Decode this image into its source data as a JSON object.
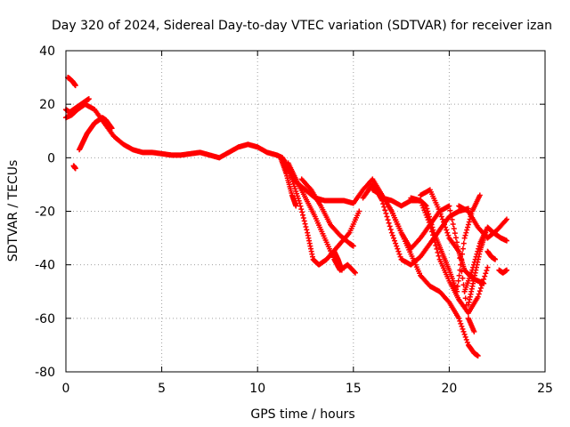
{
  "chart_data": {
    "type": "scatter",
    "title": "Day 320 of 2024, Sidereal Day-to-day VTEC variation (SDTVAR) for receiver izan",
    "xlabel": "GPS time / hours",
    "ylabel": "SDTVAR / TECUs",
    "xlim": [
      0,
      25
    ],
    "ylim": [
      -80,
      40
    ],
    "xticks": [
      0,
      5,
      10,
      15,
      20,
      25
    ],
    "yticks": [
      -80,
      -60,
      -40,
      -20,
      0,
      20,
      40
    ],
    "grid": true,
    "marker": "+",
    "color": "#ff0000",
    "series": [
      {
        "name": "trace-main",
        "x": [
          0.0,
          0.3,
          0.6,
          1.0,
          1.5,
          2.0,
          2.5,
          3.0,
          3.5,
          4.0,
          4.5,
          5.0,
          5.5,
          6.0,
          6.5,
          7.0,
          7.5,
          8.0,
          8.5,
          9.0,
          9.5,
          10.0,
          10.5,
          11.0,
          11.3,
          11.6,
          12.0,
          12.5,
          13.0,
          13.5,
          14.0,
          14.5,
          15.0
        ],
        "y": [
          15,
          16,
          18,
          20,
          18,
          13,
          8,
          5,
          3,
          2,
          2,
          1.5,
          1,
          1,
          1.5,
          2,
          1,
          0,
          2,
          4,
          5,
          4,
          2,
          1,
          0,
          -4,
          -9,
          -12,
          -15,
          -16,
          -16,
          -16,
          -17
        ]
      },
      {
        "name": "trace-upper-start",
        "x": [
          0.1,
          0.2,
          0.35,
          0.5
        ],
        "y": [
          30,
          29.5,
          28.5,
          27
        ]
      },
      {
        "name": "trace-mid-start",
        "x": [
          0.0,
          0.2,
          0.4,
          0.6,
          0.8,
          1.0,
          1.2
        ],
        "y": [
          18,
          17,
          18,
          19,
          20,
          21,
          22
        ]
      },
      {
        "name": "trace-low-start",
        "x": [
          0.7,
          0.9,
          1.1,
          1.3,
          1.5,
          1.7,
          1.9,
          2.1,
          2.4
        ],
        "y": [
          3,
          6,
          9,
          11,
          13,
          14,
          15,
          14,
          11
        ]
      },
      {
        "name": "trace-outlier",
        "x": [
          0.4,
          0.5
        ],
        "y": [
          -3,
          -4
        ]
      },
      {
        "name": "trace-drop-a",
        "x": [
          11.2,
          11.5,
          11.8,
          12.0
        ],
        "y": [
          0,
          -6,
          -14,
          -18
        ]
      },
      {
        "name": "trace-drop-b",
        "x": [
          11.4,
          11.8,
          12.2,
          12.6,
          12.9,
          13.2,
          13.6,
          14.2,
          14.8,
          15.3
        ],
        "y": [
          -1,
          -8,
          -17,
          -28,
          -38,
          -40,
          -38,
          -33,
          -28,
          -20
        ]
      },
      {
        "name": "trace-drop-c",
        "x": [
          11.6,
          12.0,
          12.5,
          13.0,
          13.5,
          14.0,
          14.3,
          14.7,
          15.1
        ],
        "y": [
          -2,
          -8,
          -15,
          -22,
          -30,
          -38,
          -42,
          -40,
          -43
        ]
      },
      {
        "name": "trace-drop-d",
        "x": [
          12.3,
          12.8,
          13.3,
          13.8,
          14.3,
          14.8,
          15.0
        ],
        "y": [
          -8,
          -12,
          -18,
          -25,
          -29,
          -32,
          -33
        ]
      },
      {
        "name": "trace-lower-d",
        "x": [
          14.0,
          14.2,
          14.4
        ],
        "y": [
          -35,
          -38,
          -42
        ]
      },
      {
        "name": "trace-arch-a",
        "x": [
          15.0,
          15.5,
          16.0,
          16.5,
          17.0,
          17.5,
          18.0,
          18.5,
          19.0,
          19.5,
          20.0,
          20.5,
          21.0,
          21.3,
          21.5
        ],
        "y": [
          -17,
          -12,
          -8,
          -14,
          -20,
          -28,
          -36,
          -44,
          -48,
          -50,
          -54,
          -60,
          -70,
          -73,
          -74
        ]
      },
      {
        "name": "trace-arch-b",
        "x": [
          15.5,
          16.0,
          16.5,
          17.0,
          17.5,
          18.0,
          18.5,
          19.0,
          19.5,
          20.0,
          20.5,
          21.0
        ],
        "y": [
          -15,
          -10,
          -16,
          -28,
          -38,
          -40,
          -37,
          -32,
          -27,
          -22,
          -20,
          -19
        ]
      },
      {
        "name": "trace-arch-c",
        "x": [
          16.5,
          17.0,
          17.5,
          18.0,
          18.5,
          19.0,
          19.5,
          20.0,
          20.5,
          21.0,
          21.5,
          22.0
        ],
        "y": [
          -15,
          -16,
          -18,
          -16,
          -16,
          -25,
          -38,
          -46,
          -53,
          -58,
          -52,
          -41
        ]
      },
      {
        "name": "trace-arch-d",
        "x": [
          16.0,
          16.5,
          17.0,
          17.5,
          18.0,
          18.5,
          19.0,
          19.5,
          20.0,
          20.5,
          21.0,
          21.3
        ],
        "y": [
          -12,
          -14,
          -20,
          -28,
          -34,
          -30,
          -25,
          -20,
          -18,
          -35,
          -60,
          -65
        ]
      },
      {
        "name": "trace-arch-e",
        "x": [
          18.5,
          19.0,
          19.5,
          20.0,
          20.5,
          20.8,
          21.2,
          21.5,
          21.8
        ],
        "y": [
          -14,
          -12,
          -20,
          -30,
          -35,
          -42,
          -45,
          -46,
          -47
        ]
      },
      {
        "name": "trace-late-a",
        "x": [
          18.0,
          18.5,
          18.8,
          19.2,
          19.6,
          20.0,
          20.4,
          20.8,
          21.2,
          21.6
        ],
        "y": [
          -15,
          -16,
          -18,
          -28,
          -35,
          -42,
          -50,
          -30,
          -20,
          -14
        ]
      },
      {
        "name": "trace-late-b",
        "x": [
          20.5,
          21.0,
          21.5,
          22.0,
          22.5,
          23.0
        ],
        "y": [
          -18,
          -20,
          -26,
          -30,
          -27,
          -23
        ]
      },
      {
        "name": "trace-late-c",
        "x": [
          20.8,
          21.2,
          21.6,
          22.0,
          22.3,
          22.7,
          23.0
        ],
        "y": [
          -50,
          -42,
          -32,
          -26,
          -28,
          -30,
          -31
        ]
      },
      {
        "name": "trace-late-d",
        "x": [
          22.0,
          22.2,
          22.4
        ],
        "y": [
          -35,
          -37,
          -38
        ]
      },
      {
        "name": "trace-late-e",
        "x": [
          22.6,
          22.8,
          23.0
        ],
        "y": [
          -42,
          -43,
          -42
        ]
      },
      {
        "name": "trace-late-f",
        "x": [
          21.0,
          21.3,
          21.6,
          21.9
        ],
        "y": [
          -55,
          -45,
          -35,
          -28
        ]
      }
    ]
  }
}
